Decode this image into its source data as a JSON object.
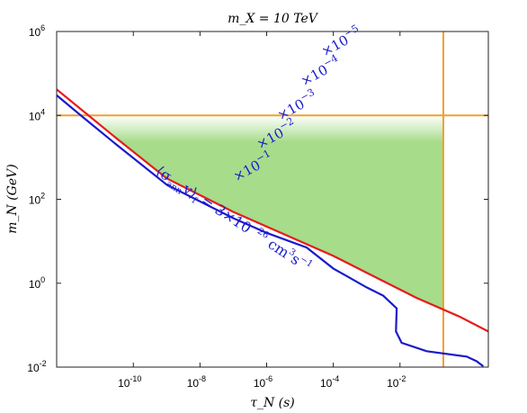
{
  "chart_data": {
    "type": "line",
    "title": "m_X = 10 TeV",
    "xlabel": "τ_N (s)",
    "ylabel": "m_N (GeV)",
    "xscale": "log",
    "yscale": "log",
    "xlim_log10": [
      -12.3,
      0.65
    ],
    "ylim_log10": [
      -2,
      6
    ],
    "x_ticks_log10": [
      -10,
      -8,
      -6,
      -4,
      -2
    ],
    "x_tick_labels": [
      "10^-10",
      "10^-8",
      "10^-6",
      "10^-4",
      "10^-2"
    ],
    "y_ticks_log10": [
      -2,
      0,
      2,
      4,
      6
    ],
    "y_tick_labels": [
      "10^-2",
      "10^0",
      "10^2",
      "10^4",
      "10^6"
    ],
    "grid": false,
    "colors": {
      "red": "#e81b1b",
      "blue": "#1a1acc",
      "orange": "#f0a030",
      "green": "#a6dc8a"
    },
    "series": [
      {
        "style": "red-solid",
        "points_log10": [
          [
            -12.3,
            4.62
          ],
          [
            -11.5,
            4.1
          ],
          [
            -10.5,
            3.45
          ],
          [
            -9,
            2.5
          ],
          [
            -7,
            1.7
          ],
          [
            -5,
            1.0
          ],
          [
            -4,
            0.65
          ],
          [
            -3,
            0.25
          ],
          [
            -1.5,
            -0.35
          ],
          [
            -0.2,
            -0.8
          ],
          [
            0.65,
            -1.15
          ]
        ]
      },
      {
        "style": "blue-solid",
        "points_log10": [
          [
            -12.3,
            4.48
          ],
          [
            -11.5,
            3.95
          ],
          [
            -10.5,
            3.3
          ],
          [
            -9,
            2.35
          ],
          [
            -7,
            1.55
          ],
          [
            -6,
            1.2
          ],
          [
            -4.8,
            0.85
          ],
          [
            -4.0,
            0.35
          ],
          [
            -3.0,
            -0.1
          ],
          [
            -2.5,
            -0.3
          ],
          [
            -2.1,
            -0.6
          ],
          [
            -2.12,
            -1.15
          ],
          [
            -1.95,
            -1.42
          ],
          [
            -1.2,
            -1.62
          ],
          [
            0.0,
            -1.75
          ],
          [
            0.3,
            -1.86
          ],
          [
            0.5,
            -1.98
          ]
        ]
      }
    ],
    "reference_lines": [
      {
        "orientation": "horizontal",
        "y_log10": 4,
        "color": "orange"
      },
      {
        "orientation": "vertical",
        "x_log10": -0.7,
        "color": "orange"
      }
    ],
    "contours": [
      {
        "label_base": "×10",
        "label_exp": "−1",
        "intercept_log10": 8.0,
        "slope": -0.76,
        "x_range_log10": [
          -9.8,
          0.65
        ]
      },
      {
        "label_base": "×10",
        "label_exp": "−2",
        "intercept_log10": 9.35,
        "slope": -0.76,
        "x_range_log10": [
          -10.8,
          0.65
        ]
      },
      {
        "label_base": "×10",
        "label_exp": "−3",
        "intercept_log10": 10.7,
        "slope": -0.76,
        "x_range_log10": [
          -12.3,
          0.65
        ]
      },
      {
        "label_base": "×10",
        "label_exp": "−4",
        "intercept_log10": 12.05,
        "slope": -0.76,
        "x_range_log10": [
          -12.3,
          0.65
        ]
      },
      {
        "label_base": "×10",
        "label_exp": "−5",
        "intercept_log10": 13.4,
        "slope": -0.76,
        "x_range_log10": [
          -9.6,
          0.65
        ]
      },
      {
        "label_base": "",
        "label_exp": "",
        "intercept_log10": 14.75,
        "slope": -0.76,
        "x_range_log10": [
          -7.6,
          0.65
        ]
      }
    ],
    "annotation": {
      "lhs": "⟨σ",
      "lhs_sub": "ann",
      "lhs_v": "v⟩",
      "lhs_v_sub": "f",
      "rhs": " = 3×10",
      "rhs_exp": "−26",
      "unit1": " cm",
      "unit1_exp": "3",
      "unit2": "s",
      "unit2_exp": "−1"
    }
  }
}
